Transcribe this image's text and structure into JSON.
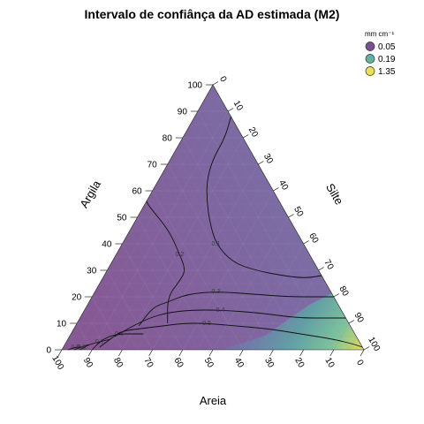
{
  "chart_data": {
    "type": "ternary-contour",
    "title": "Intervalo de confiânça da AD estimada (M2)",
    "axes": {
      "left": {
        "label": "Argila",
        "ticks": [
          "0",
          "10",
          "20",
          "30",
          "40",
          "50",
          "60",
          "70",
          "80",
          "90",
          "100"
        ]
      },
      "right": {
        "label": "Silte",
        "ticks": [
          "0",
          "10",
          "20",
          "30",
          "40",
          "50",
          "60",
          "70",
          "80",
          "90",
          "100"
        ]
      },
      "bottom": {
        "label": "Areia",
        "ticks": [
          "100",
          "90",
          "80",
          "70",
          "60",
          "50",
          "40",
          "30",
          "20",
          "10",
          "0"
        ]
      }
    },
    "legend": {
      "title": "mm cm⁻¹",
      "position": "top-right",
      "entries": [
        {
          "label": "0.05",
          "color": "#7a4f91"
        },
        {
          "label": "0.19",
          "color": "#5fb3a3"
        },
        {
          "label": "1.35",
          "color": "#ece04a"
        }
      ]
    },
    "contour_labels": [
      "0.1",
      "0.2",
      "0.3",
      "0.4",
      "0.5",
      "0.6",
      "0.7",
      "0.8",
      "0.9"
    ],
    "contours": [
      {
        "level": "0.1",
        "points": [
          [
            0,
            88,
            12
          ],
          [
            6,
            80,
            14
          ],
          [
            14,
            72,
            14
          ],
          [
            20,
            64,
            16
          ],
          [
            24,
            56,
            20
          ],
          [
            27,
            48,
            25
          ],
          [
            29,
            40,
            31
          ],
          [
            27,
            33,
            40
          ],
          [
            21,
            30,
            49
          ],
          [
            13,
            28,
            59
          ],
          [
            6,
            27,
            67
          ],
          [
            0,
            28,
            72
          ]
        ]
      },
      {
        "level": "0.2",
        "points": [
          [
            60,
            10,
            30
          ],
          [
            55,
            20,
            25
          ],
          [
            48,
            26,
            26
          ],
          [
            44,
            30,
            26
          ],
          [
            43,
            36,
            21
          ],
          [
            42,
            45,
            13
          ],
          [
            44,
            54,
            2
          ],
          [
            44,
            56,
            0
          ]
        ]
      },
      {
        "level": "0.3",
        "points": [
          [
            70,
            9,
            21
          ],
          [
            62,
            16,
            22
          ],
          [
            56,
            18,
            26
          ],
          [
            48,
            21,
            31
          ],
          [
            38,
            22,
            40
          ],
          [
            26,
            21,
            53
          ],
          [
            15,
            20,
            65
          ],
          [
            4,
            20,
            76
          ],
          [
            0,
            20,
            80
          ]
        ]
      },
      {
        "level": "0.4",
        "points": [
          [
            80,
            5,
            15
          ],
          [
            72,
            9,
            19
          ],
          [
            65,
            12,
            23
          ],
          [
            58,
            14,
            28
          ],
          [
            50,
            15,
            35
          ],
          [
            40,
            15,
            45
          ],
          [
            28,
            14,
            58
          ],
          [
            16,
            12,
            72
          ],
          [
            5,
            12,
            83
          ],
          [
            0,
            12,
            88
          ]
        ]
      },
      {
        "level": "0.5",
        "points": [
          [
            87,
            1,
            12
          ],
          [
            82,
            4,
            14
          ],
          [
            77,
            7,
            16
          ],
          [
            70,
            8,
            22
          ],
          [
            62,
            9,
            29
          ],
          [
            55,
            10,
            35
          ],
          [
            47,
            10,
            43
          ],
          [
            38,
            9,
            53
          ],
          [
            28,
            8,
            64
          ],
          [
            18,
            6,
            76
          ],
          [
            8,
            4,
            88
          ],
          [
            2,
            2,
            96
          ],
          [
            0,
            1,
            99
          ]
        ]
      },
      {
        "level": "0.6",
        "points": [
          [
            90,
            0,
            10
          ],
          [
            86,
            3,
            11
          ],
          [
            82,
            5,
            13
          ],
          [
            78,
            6,
            16
          ],
          [
            74,
            6,
            20
          ],
          [
            70,
            6,
            24
          ]
        ]
      },
      {
        "level": "0.7",
        "points": [
          [
            94,
            0,
            6
          ],
          [
            90,
            2,
            8
          ],
          [
            86,
            3,
            11
          ],
          [
            82,
            4,
            14
          ]
        ]
      },
      {
        "level": "0.8",
        "points": [
          [
            96,
            0,
            4
          ],
          [
            93,
            1,
            6
          ],
          [
            90,
            2,
            8
          ]
        ]
      },
      {
        "level": "0.9",
        "points": [
          [
            98,
            0,
            2
          ],
          [
            95,
            1,
            4
          ],
          [
            93,
            1,
            6
          ]
        ]
      }
    ],
    "grid": true
  }
}
